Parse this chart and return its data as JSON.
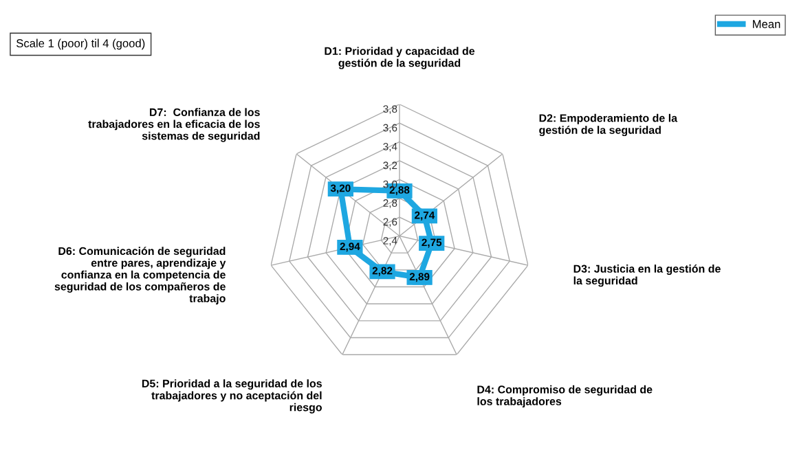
{
  "chart_data": {
    "type": "radar",
    "categories": [
      "D1: Prioridad y capacidad de\ngestión de la seguridad",
      "D2: Empoderamiento de la\ngestión de la seguridad",
      "D3: Justicia en la gestión de\nla seguridad",
      "D4: Compromiso de seguridad de\nlos trabajadores",
      "D5: Prioridad a la seguridad de los\ntrabajadores y no aceptación del\nriesgo",
      "D6: Comunicación de seguridad\nentre pares, aprendizaje y\nconfianza en la competencia de\nseguridad de los compañeros de\ntrabajo",
      "D7:  Confianza de los\ntrabajadores en la eficacia de los\nsistemas de seguridad"
    ],
    "series": [
      {
        "name": "Mean",
        "color": "#1ea7e1",
        "values": [
          2.88,
          2.74,
          2.75,
          2.89,
          2.82,
          2.94,
          3.2
        ],
        "value_labels": [
          "2,88",
          "2,74",
          "2,75",
          "2,89",
          "2,82",
          "2,94",
          "3,20"
        ]
      }
    ],
    "ylim": [
      2.4,
      3.8
    ],
    "yticks": [
      {
        "value": 2.4,
        "label": "2,4"
      },
      {
        "value": 2.6,
        "label": "2,6"
      },
      {
        "value": 2.8,
        "label": "2,8"
      },
      {
        "value": 3.0,
        "label": "3,0"
      },
      {
        "value": 3.2,
        "label": "3,2"
      },
      {
        "value": 3.4,
        "label": "3,4"
      },
      {
        "value": 3.6,
        "label": "3,6"
      },
      {
        "value": 3.8,
        "label": "3,8"
      }
    ],
    "grid": true,
    "legend": "top right",
    "marker": "square",
    "line_style": "solid",
    "annotations": [
      "Scale 1 (poor) til 4 (good)"
    ]
  }
}
